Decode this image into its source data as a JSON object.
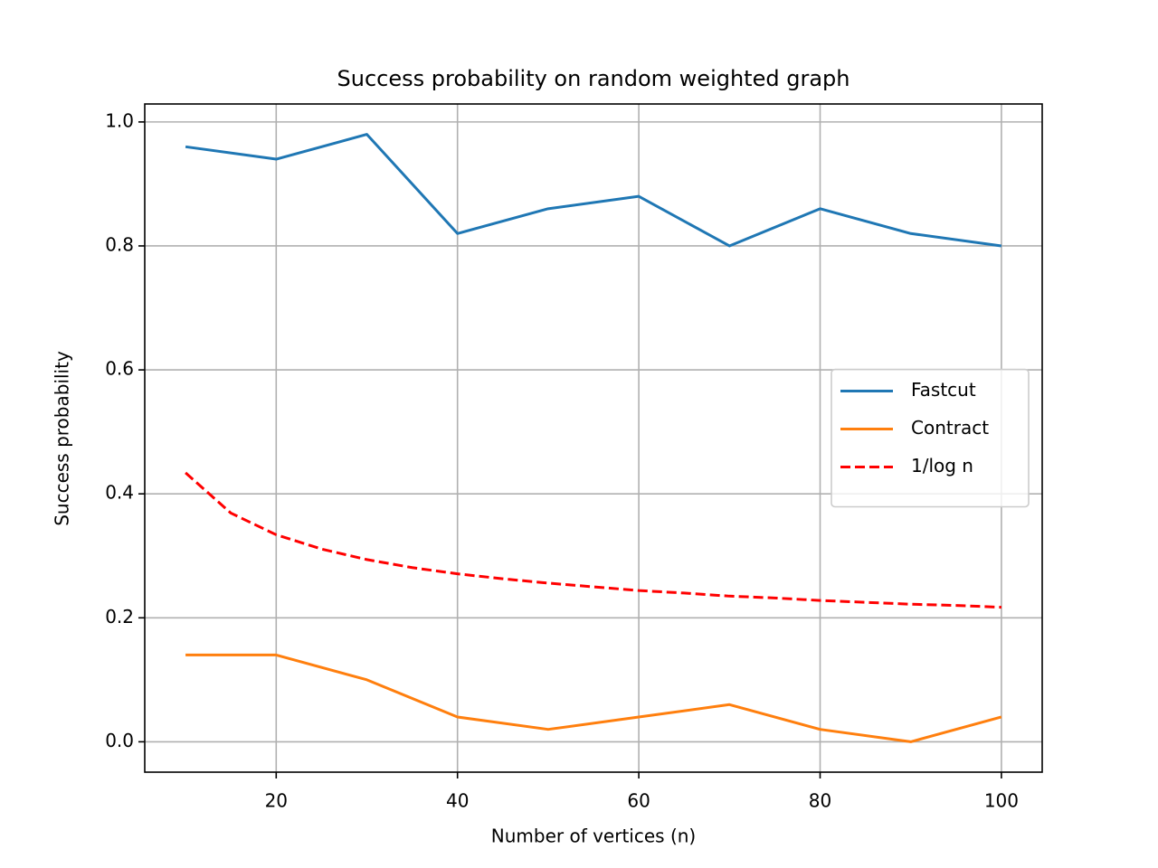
{
  "chart_data": {
    "type": "line",
    "title": "Success probability on random weighted graph",
    "xlabel": "Number of vertices (n)",
    "ylabel": "Success probability",
    "xlim": [
      5.5,
      104.5
    ],
    "ylim": [
      -0.049,
      1.029
    ],
    "xticks": [
      20,
      40,
      60,
      80,
      100
    ],
    "yticks": [
      {
        "value": 0,
        "label": "0.0"
      },
      0.2,
      0.4,
      0.6,
      0.8,
      {
        "value": 1,
        "label": "1.0"
      }
    ],
    "grid": true,
    "legend": "center right",
    "series": [
      {
        "name": "Fastcut",
        "color": "#1f77b4",
        "dash": false,
        "x": [
          10,
          20,
          30,
          40,
          50,
          60,
          70,
          80,
          90,
          100
        ],
        "values": [
          0.96,
          0.94,
          0.98,
          0.82,
          0.86,
          0.88,
          0.8,
          0.86,
          0.82,
          0.8
        ]
      },
      {
        "name": "Contract",
        "color": "#ff7f0e",
        "dash": false,
        "x": [
          10,
          20,
          30,
          40,
          50,
          60,
          70,
          80,
          90,
          100
        ],
        "values": [
          0.14,
          0.14,
          0.1,
          0.04,
          0.02,
          0.04,
          0.06,
          0.02,
          0.0,
          0.04
        ]
      },
      {
        "name": "1/log n",
        "color": "#ff0000",
        "dash": true,
        "x": [
          10,
          15,
          20,
          25,
          30,
          35,
          40,
          45,
          50,
          55,
          60,
          65,
          70,
          75,
          80,
          85,
          90,
          95,
          100
        ],
        "values": [
          0.434,
          0.369,
          0.334,
          0.311,
          0.294,
          0.281,
          0.271,
          0.263,
          0.256,
          0.25,
          0.244,
          0.24,
          0.235,
          0.232,
          0.228,
          0.225,
          0.222,
          0.22,
          0.217
        ]
      }
    ]
  }
}
